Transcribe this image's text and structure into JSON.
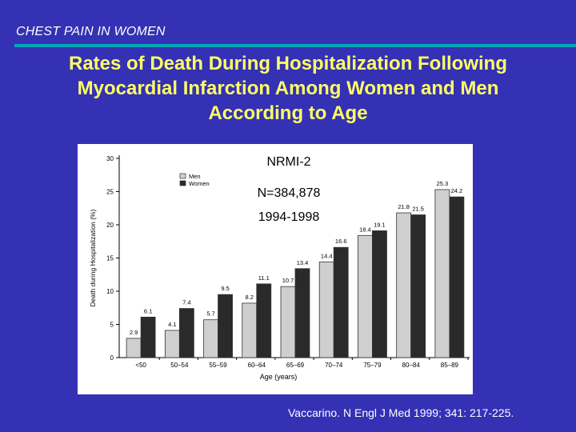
{
  "header": {
    "section_title": "CHEST PAIN IN WOMEN",
    "title_lines": [
      "Rates of Death During Hospitalization Following",
      "Myocardial Infarction Among Women and Men",
      "According to Age"
    ]
  },
  "citation": "Vaccarino.  N Engl J Med 1999; 341: 217-225.",
  "colors": {
    "background": "#3431b4",
    "accent_line": "#00a7b6",
    "title": "#ffff66",
    "men_bar": "#cfcfcf",
    "women_bar": "#2a2a2a"
  },
  "chart_data": {
    "type": "bar",
    "annotations": [
      "NRMI-2",
      "N=384,878",
      "1994-1998"
    ],
    "categories": [
      "<50",
      "50–54",
      "55–59",
      "60–64",
      "65–69",
      "70–74",
      "75–79",
      "80–84",
      "85–89"
    ],
    "series": [
      {
        "name": "Men",
        "values": [
          2.9,
          4.1,
          5.7,
          8.2,
          10.7,
          14.4,
          18.4,
          21.8,
          25.3
        ]
      },
      {
        "name": "Women",
        "values": [
          6.1,
          7.4,
          9.5,
          11.1,
          13.4,
          16.6,
          19.1,
          21.5,
          24.2
        ]
      }
    ],
    "value_labels": {
      "Men": [
        "2.9",
        "4.1",
        "5.7",
        "8.2",
        "10.7",
        "14.4",
        "18.4",
        "21.8",
        "25.3"
      ],
      "Women": [
        "6.1",
        "7.4",
        "9.5",
        "11.1",
        "13.4",
        "16.6",
        "19.1",
        "21.5",
        "24.2"
      ]
    },
    "xlabel": "Age (years)",
    "ylabel": "Death during Hospitalization (%)",
    "ylim": [
      0,
      30
    ],
    "yticks": [
      "0",
      "5",
      "10",
      "15",
      "20",
      "25",
      "30"
    ],
    "legend_position": "top-left",
    "grid": false
  }
}
